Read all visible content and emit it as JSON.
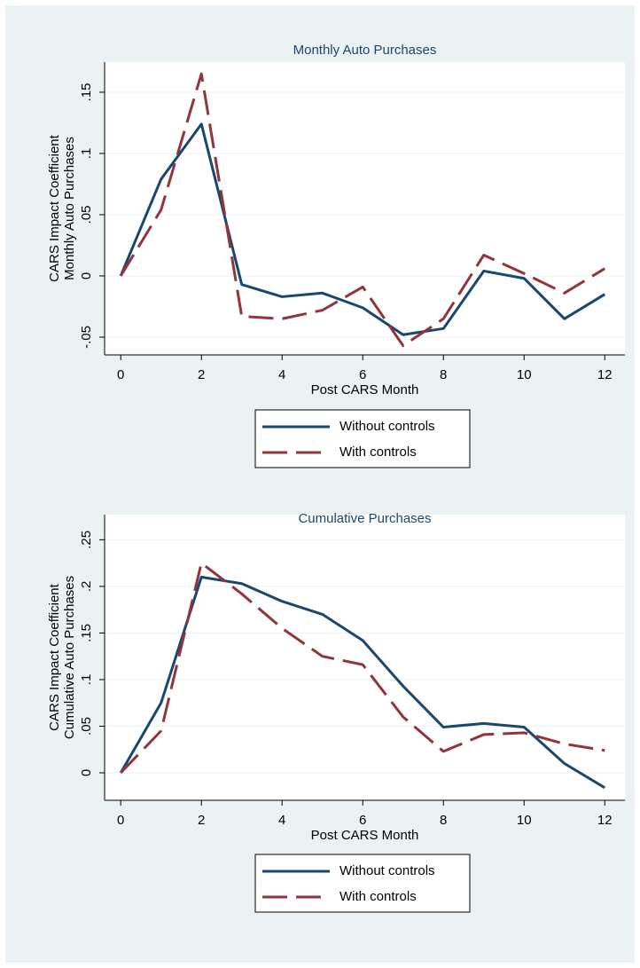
{
  "chart_data": [
    {
      "type": "line",
      "title": "Monthly Auto Purchases",
      "xlabel": "Post CARS Month",
      "ylabel": [
        "CARS Impact Coefficient",
        "Monthly Auto Purchases"
      ],
      "x": [
        0,
        1,
        2,
        3,
        4,
        5,
        6,
        7,
        8,
        9,
        10,
        11,
        12
      ],
      "xlim": [
        -0.4,
        12.5
      ],
      "xticks": [
        0,
        2,
        4,
        6,
        8,
        10,
        12
      ],
      "ylim": [
        -0.0645,
        0.1746
      ],
      "yticks": [
        {
          "value": -0.05,
          "label": "-.05"
        },
        0,
        {
          "value": 0.05,
          "label": ".05"
        },
        {
          "value": 0.1,
          "label": ".1"
        },
        {
          "value": 0.15,
          "label": ".15"
        }
      ],
      "grid": true,
      "series": [
        {
          "name": "Without controls",
          "color": "#1a476f",
          "dash": false,
          "values": [
            0,
            0.079,
            0.124,
            -0.007,
            -0.017,
            -0.014,
            -0.026,
            -0.048,
            -0.043,
            0.004,
            -0.002,
            -0.035,
            -0.015
          ]
        },
        {
          "name": "With controls",
          "color": "#90353b",
          "dash": true,
          "values": [
            0,
            0.054,
            0.165,
            -0.033,
            -0.035,
            -0.028,
            -0.009,
            -0.057,
            -0.035,
            0.017,
            0.002,
            -0.014,
            0.006
          ]
        }
      ]
    },
    {
      "type": "line",
      "title": "Cumulative Purchases",
      "xlabel": "Post CARS Month",
      "ylabel": [
        "CARS Impact Coefficient",
        "Cumulative Auto Purchases"
      ],
      "x": [
        0,
        1,
        2,
        3,
        4,
        5,
        6,
        7,
        8,
        9,
        10,
        11,
        12
      ],
      "xlim": [
        -0.4,
        12.5
      ],
      "xticks": [
        0,
        2,
        4,
        6,
        8,
        10,
        12
      ],
      "ylim": [
        -0.0295,
        0.277
      ],
      "yticks": [
        0,
        {
          "value": 0.05,
          "label": ".05"
        },
        {
          "value": 0.1,
          "label": ".1"
        },
        {
          "value": 0.15,
          "label": ".15"
        },
        {
          "value": 0.2,
          "label": ".2"
        },
        {
          "value": 0.25,
          "label": ".25"
        }
      ],
      "grid": true,
      "series": [
        {
          "name": "Without controls",
          "color": "#1a476f",
          "dash": false,
          "values": [
            0,
            0.075,
            0.21,
            0.203,
            0.184,
            0.17,
            0.142,
            0.093,
            0.049,
            0.053,
            0.049,
            0.01,
            -0.016
          ]
        },
        {
          "name": "With controls",
          "color": "#90353b",
          "dash": true,
          "values": [
            0,
            0.045,
            0.225,
            0.192,
            0.155,
            0.125,
            0.116,
            0.06,
            0.023,
            0.041,
            0.043,
            0.031,
            0.024
          ]
        }
      ]
    }
  ]
}
